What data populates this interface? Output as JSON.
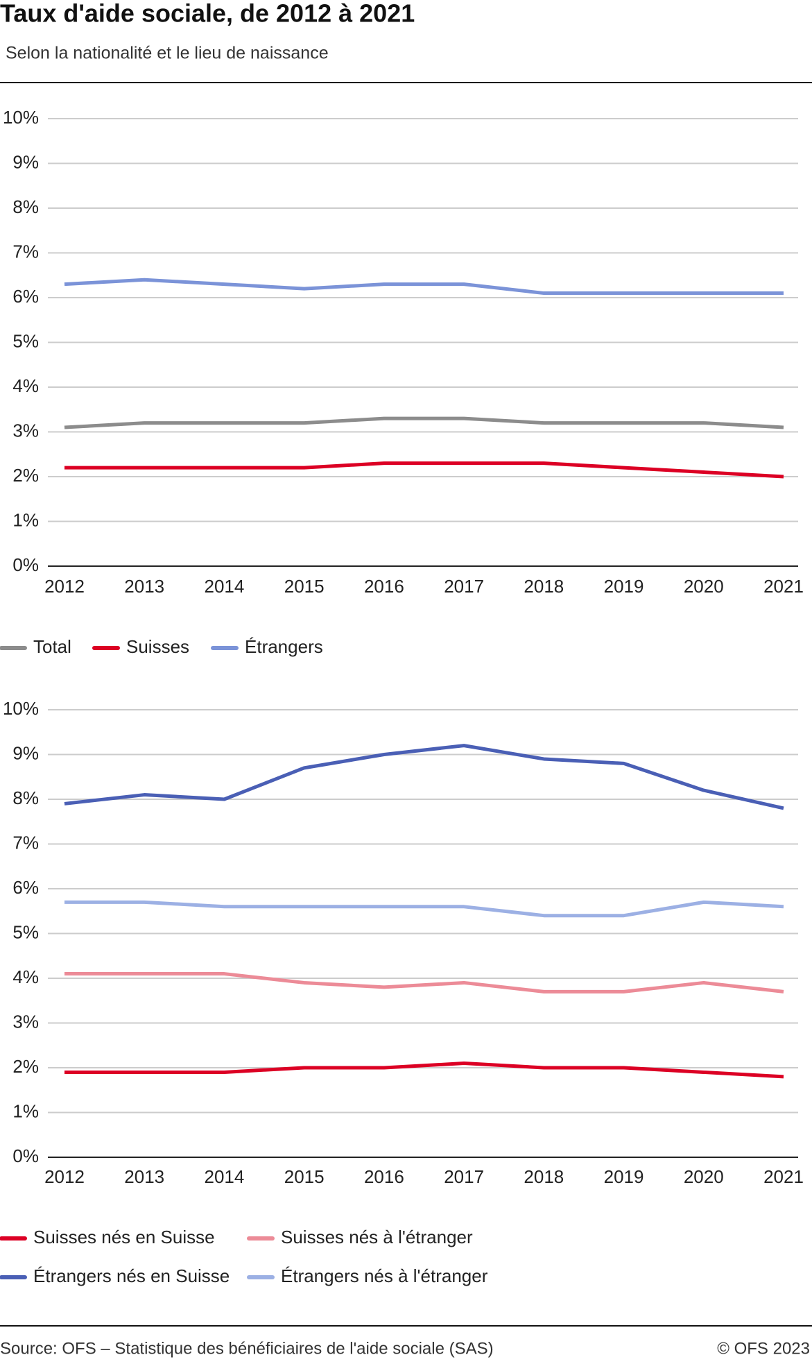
{
  "title": "Taux d'aide sociale, de 2012 à 2021",
  "subtitle": "Selon la nationalité et le lieu de naissance",
  "source": "Source: OFS – Statistique des bénéficiaires de l'aide sociale (SAS)",
  "copyright": "© OFS 2023",
  "chart_data": [
    {
      "type": "line",
      "categories": [
        "2012",
        "2013",
        "2014",
        "2015",
        "2016",
        "2017",
        "2018",
        "2019",
        "2020",
        "2021"
      ],
      "ylim": [
        0,
        10
      ],
      "yticks": [
        {
          "value": 0,
          "label": "0%"
        },
        {
          "value": 1,
          "label": "1%"
        },
        {
          "value": 2,
          "label": "2%"
        },
        {
          "value": 3,
          "label": "3%"
        },
        {
          "value": 4,
          "label": "4%"
        },
        {
          "value": 5,
          "label": "5%"
        },
        {
          "value": 6,
          "label": "6%"
        },
        {
          "value": 7,
          "label": "7%"
        },
        {
          "value": 8,
          "label": "8%"
        },
        {
          "value": 9,
          "label": "9%"
        },
        {
          "value": 10,
          "label": "10%"
        }
      ],
      "grid": true,
      "series": [
        {
          "name": "Total",
          "color": "#8c8c8c",
          "values": [
            3.1,
            3.2,
            3.2,
            3.2,
            3.3,
            3.3,
            3.2,
            3.2,
            3.2,
            3.1
          ]
        },
        {
          "name": "Suisses",
          "color": "#dc0024",
          "values": [
            2.2,
            2.2,
            2.2,
            2.2,
            2.3,
            2.3,
            2.3,
            2.2,
            2.1,
            2.0
          ]
        },
        {
          "name": "Étrangers",
          "color": "#7b93d8",
          "values": [
            6.3,
            6.4,
            6.3,
            6.2,
            6.3,
            6.3,
            6.1,
            6.1,
            6.1,
            6.1
          ]
        }
      ]
    },
    {
      "type": "line",
      "categories": [
        "2012",
        "2013",
        "2014",
        "2015",
        "2016",
        "2017",
        "2018",
        "2019",
        "2020",
        "2021"
      ],
      "ylim": [
        0,
        10
      ],
      "yticks": [
        {
          "value": 0,
          "label": "0%"
        },
        {
          "value": 1,
          "label": "1%"
        },
        {
          "value": 2,
          "label": "2%"
        },
        {
          "value": 3,
          "label": "3%"
        },
        {
          "value": 4,
          "label": "4%"
        },
        {
          "value": 5,
          "label": "5%"
        },
        {
          "value": 6,
          "label": "6%"
        },
        {
          "value": 7,
          "label": "7%"
        },
        {
          "value": 8,
          "label": "8%"
        },
        {
          "value": 9,
          "label": "9%"
        },
        {
          "value": 10,
          "label": "10%"
        }
      ],
      "grid": true,
      "series": [
        {
          "name": "Suisses nés en Suisse",
          "color": "#dc0024",
          "values": [
            1.9,
            1.9,
            1.9,
            2.0,
            2.0,
            2.1,
            2.0,
            2.0,
            1.9,
            1.8
          ]
        },
        {
          "name": "Suisses nés à l'étranger",
          "color": "#ec8b97",
          "values": [
            4.1,
            4.1,
            4.1,
            3.9,
            3.8,
            3.9,
            3.7,
            3.7,
            3.9,
            3.7
          ]
        },
        {
          "name": "Étrangers nés en Suisse",
          "color": "#4a5fb5",
          "values": [
            7.9,
            8.1,
            8.0,
            8.7,
            9.0,
            9.2,
            8.9,
            8.8,
            8.2,
            7.8
          ]
        },
        {
          "name": "Étrangers nés à l'étranger",
          "color": "#9cb0e4",
          "values": [
            5.7,
            5.7,
            5.6,
            5.6,
            5.6,
            5.6,
            5.4,
            5.4,
            5.7,
            5.6
          ]
        }
      ]
    }
  ]
}
